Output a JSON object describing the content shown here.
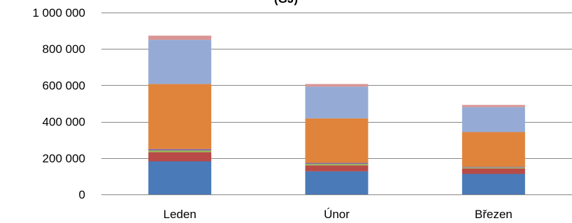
{
  "chart_data": {
    "type": "bar",
    "stacked": true,
    "title": "(GJ)",
    "categories": [
      "Leden",
      "Únor",
      "Březen"
    ],
    "ylim": [
      0,
      1000000
    ],
    "y_ticks": [
      0,
      200000,
      400000,
      600000,
      800000,
      1000000
    ],
    "y_tick_labels": [
      "0",
      "200 000",
      "400 000",
      "600 000",
      "800 000",
      "1 000 000"
    ],
    "grid": true,
    "series": [
      {
        "color": "#4a7ab8",
        "values": [
          182000,
          127000,
          113000
        ]
      },
      {
        "color": "#b84a47",
        "values": [
          50000,
          33000,
          30000
        ]
      },
      {
        "color": "#97b655",
        "values": [
          10000,
          8000,
          5000
        ]
      },
      {
        "color": "#8064a2",
        "values": [
          8000,
          6000,
          4000
        ]
      },
      {
        "color": "#e0843b",
        "values": [
          357000,
          244000,
          191000
        ]
      },
      {
        "color": "#95abd5",
        "values": [
          243000,
          175000,
          137000
        ]
      },
      {
        "color": "#d99594",
        "values": [
          23000,
          14000,
          12000
        ]
      }
    ]
  }
}
